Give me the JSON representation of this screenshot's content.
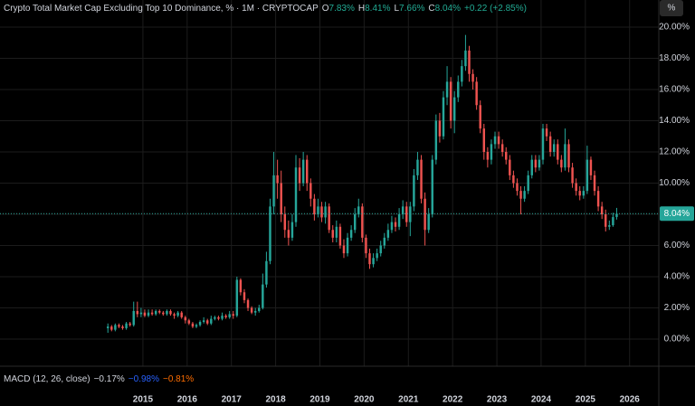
{
  "chart_data": {
    "type": "candlestick",
    "header": {
      "title": "Crypto Total Market Cap Excluding Top 10 Dominance, % · 1M · CRYPTOCAP",
      "o": "O",
      "o_value": "7.83%",
      "h": "H",
      "h_value": "8.41%",
      "l": "L",
      "l_value": "7.66%",
      "c": "C",
      "c_value": "8.04%",
      "change": "+0.22 (+2.85%)",
      "unit_button": "%"
    },
    "macd": {
      "title": "MACD (12, 26, close)",
      "macd": "−0.17%",
      "signal": "−0.98%",
      "histogram": "−0.81%"
    },
    "last_price_label": "8.04%",
    "up_color": "#26a69a",
    "down_color": "#ef5350",
    "grid": true,
    "ylim": [
      -1.45,
      21.74
    ],
    "xlim": [
      2011.77,
      2026.66
    ],
    "yticks": [
      {
        "value": 0,
        "label": "0.00%"
      },
      {
        "value": 2,
        "label": "2.00%"
      },
      {
        "value": 4,
        "label": "4.00%"
      },
      {
        "value": 6,
        "label": "6.00%"
      },
      {
        "value": 8,
        "label": "8.00%"
      },
      {
        "value": 10,
        "label": "10.00%"
      },
      {
        "value": 12,
        "label": "12.00%"
      },
      {
        "value": 14,
        "label": "14.00%"
      },
      {
        "value": 16,
        "label": "16.00%"
      },
      {
        "value": 18,
        "label": "18.00%"
      },
      {
        "value": 20,
        "label": "20.00%"
      }
    ],
    "xticks": [
      2015,
      2016,
      2017,
      2018,
      2019,
      2020,
      2021,
      2022,
      2023,
      2024,
      2025,
      2026
    ],
    "x": [
      "2014-03",
      "2014-04",
      "2014-05",
      "2014-06",
      "2014-07",
      "2014-08",
      "2014-09",
      "2014-10",
      "2014-11",
      "2014-12",
      "2015-01",
      "2015-02",
      "2015-03",
      "2015-04",
      "2015-05",
      "2015-06",
      "2015-07",
      "2015-08",
      "2015-09",
      "2015-10",
      "2015-11",
      "2015-12",
      "2016-01",
      "2016-02",
      "2016-03",
      "2016-04",
      "2016-05",
      "2016-06",
      "2016-07",
      "2016-08",
      "2016-09",
      "2016-10",
      "2016-11",
      "2016-12",
      "2017-01",
      "2017-02",
      "2017-03",
      "2017-04",
      "2017-05",
      "2017-06",
      "2017-07",
      "2017-08",
      "2017-09",
      "2017-10",
      "2017-11",
      "2017-12",
      "2018-01",
      "2018-02",
      "2018-03",
      "2018-04",
      "2018-05",
      "2018-06",
      "2018-07",
      "2018-08",
      "2018-09",
      "2018-10",
      "2018-11",
      "2018-12",
      "2019-01",
      "2019-02",
      "2019-03",
      "2019-04",
      "2019-05",
      "2019-06",
      "2019-07",
      "2019-08",
      "2019-09",
      "2019-10",
      "2019-11",
      "2019-12",
      "2020-01",
      "2020-02",
      "2020-03",
      "2020-04",
      "2020-05",
      "2020-06",
      "2020-07",
      "2020-08",
      "2020-09",
      "2020-10",
      "2020-11",
      "2020-12",
      "2021-01",
      "2021-02",
      "2021-03",
      "2021-04",
      "2021-05",
      "2021-06",
      "2021-07",
      "2021-08",
      "2021-09",
      "2021-10",
      "2021-11",
      "2021-12",
      "2022-01",
      "2022-02",
      "2022-03",
      "2022-04",
      "2022-05",
      "2022-06",
      "2022-07",
      "2022-08",
      "2022-09",
      "2022-10",
      "2022-11",
      "2022-12",
      "2023-01",
      "2023-02",
      "2023-03",
      "2023-04",
      "2023-05",
      "2023-06",
      "2023-07",
      "2023-08",
      "2023-09",
      "2023-10",
      "2023-11",
      "2023-12",
      "2024-01",
      "2024-02",
      "2024-03",
      "2024-04",
      "2024-05",
      "2024-06",
      "2024-07",
      "2024-08",
      "2024-09",
      "2024-10",
      "2024-11",
      "2024-12",
      "2025-01",
      "2025-02",
      "2025-03",
      "2025-04",
      "2025-05",
      "2025-06",
      "2025-07",
      "2025-08",
      "2025-09"
    ],
    "open": [
      0.7,
      0.8,
      0.6,
      0.9,
      0.8,
      0.7,
      1.0,
      0.9,
      1.8,
      1.6,
      1.7,
      1.5,
      1.7,
      1.6,
      1.8,
      1.7,
      1.6,
      1.8,
      1.6,
      1.5,
      1.7,
      1.4,
      1.2,
      1.0,
      0.8,
      0.9,
      1.1,
      1.2,
      1.0,
      1.3,
      1.4,
      1.3,
      1.5,
      1.4,
      1.6,
      1.5,
      3.8,
      3.0,
      2.5,
      2.0,
      1.7,
      1.8,
      2.0,
      3.5,
      5.0,
      8.5,
      10.5,
      10.0,
      8.0,
      7.0,
      6.5,
      7.5,
      11.0,
      10.0,
      11.5,
      10.0,
      9.0,
      8.0,
      8.5,
      7.8,
      8.5,
      7.0,
      6.5,
      7.2,
      6.0,
      5.5,
      6.5,
      7.0,
      8.0,
      8.5,
      6.5,
      5.5,
      4.8,
      5.2,
      5.5,
      6.0,
      6.5,
      7.0,
      7.5,
      7.2,
      8.0,
      8.5,
      7.5,
      8.5,
      10.5,
      11.5,
      9.0,
      7.0,
      8.0,
      11.5,
      14.0,
      13.0,
      15.5,
      16.5,
      14.0,
      15.5,
      16.5,
      17.5,
      18.5,
      17.0,
      16.5,
      15.0,
      13.5,
      12.0,
      11.5,
      12.5,
      13.0,
      12.5,
      12.0,
      11.5,
      10.5,
      10.0,
      9.5,
      9.0,
      9.5,
      10.5,
      11.5,
      11.0,
      11.5,
      13.5,
      13.0,
      12.0,
      12.5,
      11.5,
      11.0,
      12.5,
      11.0,
      10.0,
      9.5,
      9.2,
      9.5,
      11.5,
      10.5,
      9.5,
      8.5,
      8.0,
      7.2,
      7.3,
      7.83
    ],
    "high": [
      1.0,
      0.9,
      1.0,
      1.0,
      0.9,
      1.1,
      1.1,
      2.4,
      2.4,
      2.0,
      1.9,
      1.9,
      1.9,
      1.9,
      1.9,
      1.8,
      1.9,
      1.9,
      1.7,
      1.8,
      1.8,
      1.5,
      1.3,
      1.1,
      1.0,
      1.2,
      1.4,
      1.3,
      1.5,
      1.5,
      1.5,
      1.7,
      1.6,
      1.8,
      1.8,
      4.0,
      3.9,
      3.2,
      2.6,
      2.1,
      2.0,
      2.2,
      4.2,
      5.6,
      9.0,
      12.0,
      11.5,
      10.8,
      8.5,
      7.6,
      8.0,
      11.8,
      11.6,
      12.0,
      11.8,
      10.3,
      9.3,
      9.0,
      8.8,
      8.8,
      8.7,
      7.3,
      7.6,
      7.4,
      6.4,
      6.8,
      7.3,
      8.4,
      9.0,
      8.7,
      6.7,
      5.8,
      5.5,
      5.8,
      6.3,
      6.8,
      7.4,
      7.9,
      7.8,
      8.4,
      8.9,
      8.8,
      8.8,
      10.9,
      12.0,
      11.8,
      9.4,
      8.4,
      11.8,
      14.4,
      14.5,
      15.9,
      17.5,
      16.8,
      15.9,
      16.9,
      17.9,
      19.5,
      18.8,
      17.3,
      16.8,
      15.3,
      13.8,
      12.3,
      12.8,
      13.3,
      13.3,
      12.8,
      12.3,
      11.8,
      10.8,
      10.3,
      9.8,
      9.8,
      10.8,
      11.8,
      11.8,
      11.8,
      13.8,
      13.8,
      13.3,
      12.8,
      12.8,
      11.8,
      13.5,
      12.8,
      11.3,
      10.3,
      9.8,
      9.8,
      12.4,
      11.7,
      10.8,
      9.8,
      8.8,
      8.3,
      7.6,
      8.1,
      8.41
    ],
    "low": [
      0.4,
      0.5,
      0.5,
      0.7,
      0.6,
      0.6,
      0.8,
      0.8,
      1.4,
      1.4,
      1.4,
      1.4,
      1.5,
      1.5,
      1.6,
      1.5,
      1.5,
      1.5,
      1.3,
      1.4,
      1.3,
      1.0,
      0.9,
      0.7,
      0.7,
      0.8,
      1.0,
      0.9,
      0.9,
      1.2,
      1.2,
      1.2,
      1.3,
      1.3,
      1.3,
      1.4,
      2.8,
      2.3,
      1.8,
      1.6,
      1.5,
      1.7,
      1.9,
      3.3,
      4.8,
      8.0,
      9.0,
      7.5,
      6.5,
      6.0,
      6.3,
      7.2,
      9.5,
      9.8,
      9.5,
      8.5,
      7.6,
      7.8,
      7.5,
      7.4,
      6.8,
      6.2,
      6.2,
      5.8,
      5.2,
      5.3,
      6.3,
      6.8,
      7.8,
      6.2,
      5.2,
      4.5,
      4.6,
      5.0,
      5.3,
      5.8,
      6.3,
      6.8,
      6.9,
      7.0,
      7.7,
      7.2,
      6.6,
      8.2,
      10.2,
      8.7,
      6.0,
      6.8,
      7.8,
      11.2,
      12.6,
      12.8,
      15.0,
      13.5,
      13.2,
      15.2,
      16.2,
      17.2,
      16.5,
      16.0,
      14.7,
      13.2,
      11.5,
      11.0,
      11.2,
      12.2,
      12.2,
      11.7,
      11.2,
      10.2,
      9.7,
      9.2,
      8.0,
      8.8,
      9.3,
      10.3,
      10.7,
      10.8,
      11.2,
      12.7,
      11.7,
      11.7,
      11.2,
      10.7,
      10.8,
      10.7,
      9.7,
      9.2,
      8.9,
      9.0,
      9.3,
      10.2,
      9.2,
      8.2,
      7.7,
      6.9,
      7.0,
      7.2,
      7.66
    ],
    "close": [
      0.8,
      0.6,
      0.9,
      0.8,
      0.7,
      1.0,
      0.9,
      1.8,
      1.6,
      1.7,
      1.5,
      1.7,
      1.6,
      1.8,
      1.7,
      1.6,
      1.8,
      1.6,
      1.5,
      1.7,
      1.4,
      1.2,
      1.0,
      0.8,
      0.9,
      1.1,
      1.2,
      1.0,
      1.3,
      1.4,
      1.3,
      1.5,
      1.4,
      1.6,
      1.5,
      3.8,
      3.0,
      2.5,
      2.0,
      1.7,
      1.8,
      2.0,
      3.5,
      5.0,
      8.5,
      10.5,
      10.0,
      8.0,
      7.0,
      6.5,
      7.5,
      11.0,
      10.0,
      11.5,
      10.0,
      9.0,
      8.0,
      8.5,
      7.8,
      8.5,
      7.0,
      6.5,
      7.2,
      6.0,
      5.5,
      6.5,
      7.0,
      8.0,
      8.5,
      6.5,
      5.5,
      4.8,
      5.2,
      5.5,
      6.0,
      6.5,
      7.0,
      7.5,
      7.2,
      8.0,
      8.5,
      7.5,
      8.5,
      10.5,
      11.5,
      9.0,
      7.0,
      8.0,
      11.5,
      14.0,
      13.0,
      15.5,
      16.5,
      14.0,
      15.5,
      16.5,
      17.5,
      18.5,
      17.0,
      16.5,
      15.0,
      13.5,
      12.0,
      11.5,
      12.5,
      13.0,
      12.5,
      12.0,
      11.5,
      10.5,
      10.0,
      9.5,
      9.0,
      9.5,
      10.5,
      11.5,
      11.0,
      11.5,
      13.5,
      13.0,
      12.0,
      12.5,
      11.5,
      11.0,
      12.5,
      11.0,
      10.0,
      9.5,
      9.2,
      9.5,
      11.5,
      10.5,
      9.5,
      8.5,
      8.0,
      7.2,
      7.3,
      7.82,
      8.04
    ]
  }
}
